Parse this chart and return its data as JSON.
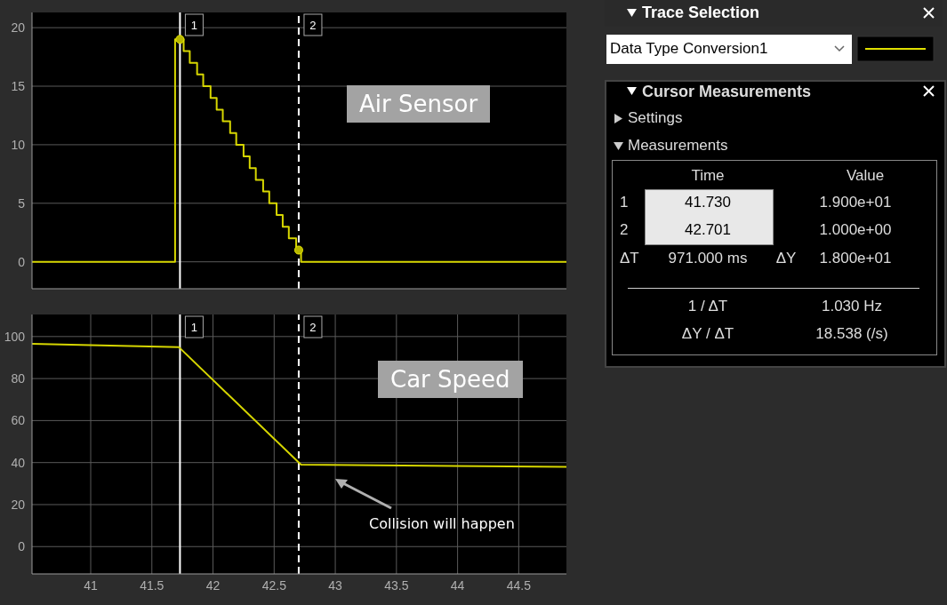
{
  "chart_data": [
    {
      "type": "line",
      "title": "Air Sensor",
      "xlim": [
        40.52,
        44.89
      ],
      "xticks": [
        41,
        41.5,
        42,
        42.5,
        43,
        43.5,
        44,
        44.5
      ],
      "ylim": [
        -2.3,
        21.3
      ],
      "yticks": [
        0,
        5,
        10,
        15,
        20
      ],
      "grid": true,
      "tick_labels": "y",
      "series": [
        {
          "type": "step",
          "color": "#d6d600",
          "x": [
            40.52,
            41.69,
            41.76,
            41.81,
            41.87,
            41.92,
            41.98,
            42.03,
            42.08,
            42.14,
            42.19,
            42.25,
            42.3,
            42.35,
            42.41,
            42.46,
            42.52,
            42.57,
            42.62,
            42.68,
            42.72,
            44.89
          ],
          "values": [
            0,
            19,
            18,
            17,
            16,
            15,
            14,
            13,
            12,
            11,
            10,
            9,
            8,
            7,
            6,
            5,
            4,
            3,
            2,
            1,
            0,
            0
          ]
        },
        {
          "type": "scatter",
          "color": "#b8b800",
          "marker": "circle",
          "x": [
            41.73,
            42.701
          ],
          "values": [
            19,
            1
          ]
        }
      ],
      "ref_lines": [
        {
          "axis": "x",
          "value": 41.73,
          "color": "#ffffff",
          "line_style": "solid"
        },
        {
          "axis": "x",
          "value": 42.701,
          "color": "#ffffff",
          "line_style": "dashed"
        }
      ],
      "annotations": [
        "1",
        "2"
      ]
    },
    {
      "type": "line",
      "title": "Car Speed",
      "xlim": [
        40.52,
        44.89
      ],
      "xticks": [
        41,
        41.5,
        42,
        42.5,
        43,
        43.5,
        44,
        44.5
      ],
      "ylim": [
        -13,
        110.5
      ],
      "yticks": [
        0,
        20,
        40,
        60,
        80,
        100
      ],
      "grid": true,
      "series": [
        {
          "color": "#d6d600",
          "x": [
            40.52,
            41.72,
            42.72,
            44.89
          ],
          "values": [
            96.5,
            95,
            39,
            38
          ]
        }
      ],
      "ref_lines": [
        {
          "axis": "x",
          "value": 41.73,
          "color": "#ffffff",
          "line_style": "solid"
        },
        {
          "axis": "x",
          "value": 42.701,
          "color": "#ffffff",
          "line_style": "dashed"
        }
      ],
      "annotations": [
        "1",
        "2",
        "Collision will happen"
      ]
    },
    {
      "type": "other",
      "title": "Trace Selection",
      "annotations": [
        "Data Type Conversion1",
        "Cursor Measurements",
        "Settings",
        "Measurements",
        "Time",
        "Value",
        "1",
        "41.730",
        "1.900e+01",
        "2",
        "42.701",
        "1.000e+00",
        "ΔT",
        "971.000 ms",
        "ΔY",
        "1.800e+01",
        "1 / ΔT",
        "1.030 Hz",
        "ΔY / ΔT",
        "18.538 (/s)"
      ]
    }
  ]
}
